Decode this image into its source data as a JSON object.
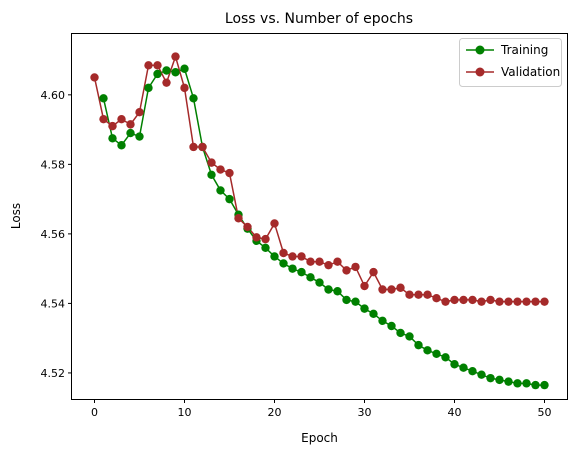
{
  "chart_data": {
    "type": "line",
    "title": "Loss vs. Number of epochs",
    "xlabel": "Epoch",
    "ylabel": "Loss",
    "xlim": [
      -2.5,
      52.5
    ],
    "ylim": [
      4.5125,
      4.6175
    ],
    "xticks": [
      0,
      10,
      20,
      30,
      40,
      50
    ],
    "xtick_labels": [
      "0",
      "10",
      "20",
      "30",
      "40",
      "50"
    ],
    "yticks": [
      4.52,
      4.54,
      4.56,
      4.58,
      4.6
    ],
    "ytick_labels": [
      "4.52",
      "4.54",
      "4.56",
      "4.58",
      "4.60"
    ],
    "grid": false,
    "legend_position": "top-right",
    "x": [
      0,
      1,
      2,
      3,
      4,
      5,
      6,
      7,
      8,
      9,
      10,
      11,
      12,
      13,
      14,
      15,
      16,
      17,
      18,
      19,
      20,
      21,
      22,
      23,
      24,
      25,
      26,
      27,
      28,
      29,
      30,
      31,
      32,
      33,
      34,
      35,
      36,
      37,
      38,
      39,
      40,
      41,
      42,
      43,
      44,
      45,
      46,
      47,
      48,
      49,
      50
    ],
    "series": [
      {
        "name": "Training",
        "color": "#008000",
        "x": [
          1,
          2,
          3,
          4,
          5,
          6,
          7,
          8,
          9,
          10,
          11,
          12,
          13,
          14,
          15,
          16,
          17,
          18,
          19,
          20,
          21,
          22,
          23,
          24,
          25,
          26,
          27,
          28,
          29,
          30,
          31,
          32,
          33,
          34,
          35,
          36,
          37,
          38,
          39,
          40,
          41,
          42,
          43,
          44,
          45,
          46,
          47,
          48,
          49,
          50
        ],
        "values": [
          4.599,
          4.5875,
          4.5855,
          4.589,
          4.588,
          4.602,
          4.606,
          4.607,
          4.6065,
          4.6075,
          4.599,
          4.585,
          4.577,
          4.5725,
          4.57,
          4.5655,
          4.5615,
          4.558,
          4.556,
          4.5535,
          4.5515,
          4.55,
          4.549,
          4.5475,
          4.546,
          4.544,
          4.5435,
          4.541,
          4.5405,
          4.5385,
          4.537,
          4.535,
          4.5335,
          4.5315,
          4.5305,
          4.528,
          4.5265,
          4.5255,
          4.5245,
          4.5225,
          4.5215,
          4.5205,
          4.5195,
          4.5185,
          4.518,
          4.5175,
          4.517,
          4.517,
          4.5165,
          4.5165
        ]
      },
      {
        "name": "Validation",
        "color": "#a52a2a",
        "x": [
          0,
          1,
          2,
          3,
          4,
          5,
          6,
          7,
          8,
          9,
          10,
          11,
          12,
          13,
          14,
          15,
          16,
          17,
          18,
          19,
          20,
          21,
          22,
          23,
          24,
          25,
          26,
          27,
          28,
          29,
          30,
          31,
          32,
          33,
          34,
          35,
          36,
          37,
          38,
          39,
          40,
          41,
          42,
          43,
          44,
          45,
          46,
          47,
          48,
          49,
          50
        ],
        "values": [
          4.605,
          4.593,
          4.591,
          4.593,
          4.5915,
          4.595,
          4.6085,
          4.6085,
          4.6035,
          4.611,
          4.602,
          4.585,
          4.585,
          4.5805,
          4.5785,
          4.5775,
          4.5645,
          4.562,
          4.559,
          4.5585,
          4.563,
          4.5545,
          4.5535,
          4.5535,
          4.552,
          4.552,
          4.551,
          4.552,
          4.5495,
          4.5505,
          4.545,
          4.549,
          4.544,
          4.544,
          4.5445,
          4.5425,
          4.5425,
          4.5425,
          4.5415,
          4.5405,
          4.541,
          4.541,
          4.541,
          4.5405,
          4.541,
          4.5405,
          4.5405,
          4.5405,
          4.5405,
          4.5405,
          4.5405
        ]
      }
    ]
  }
}
